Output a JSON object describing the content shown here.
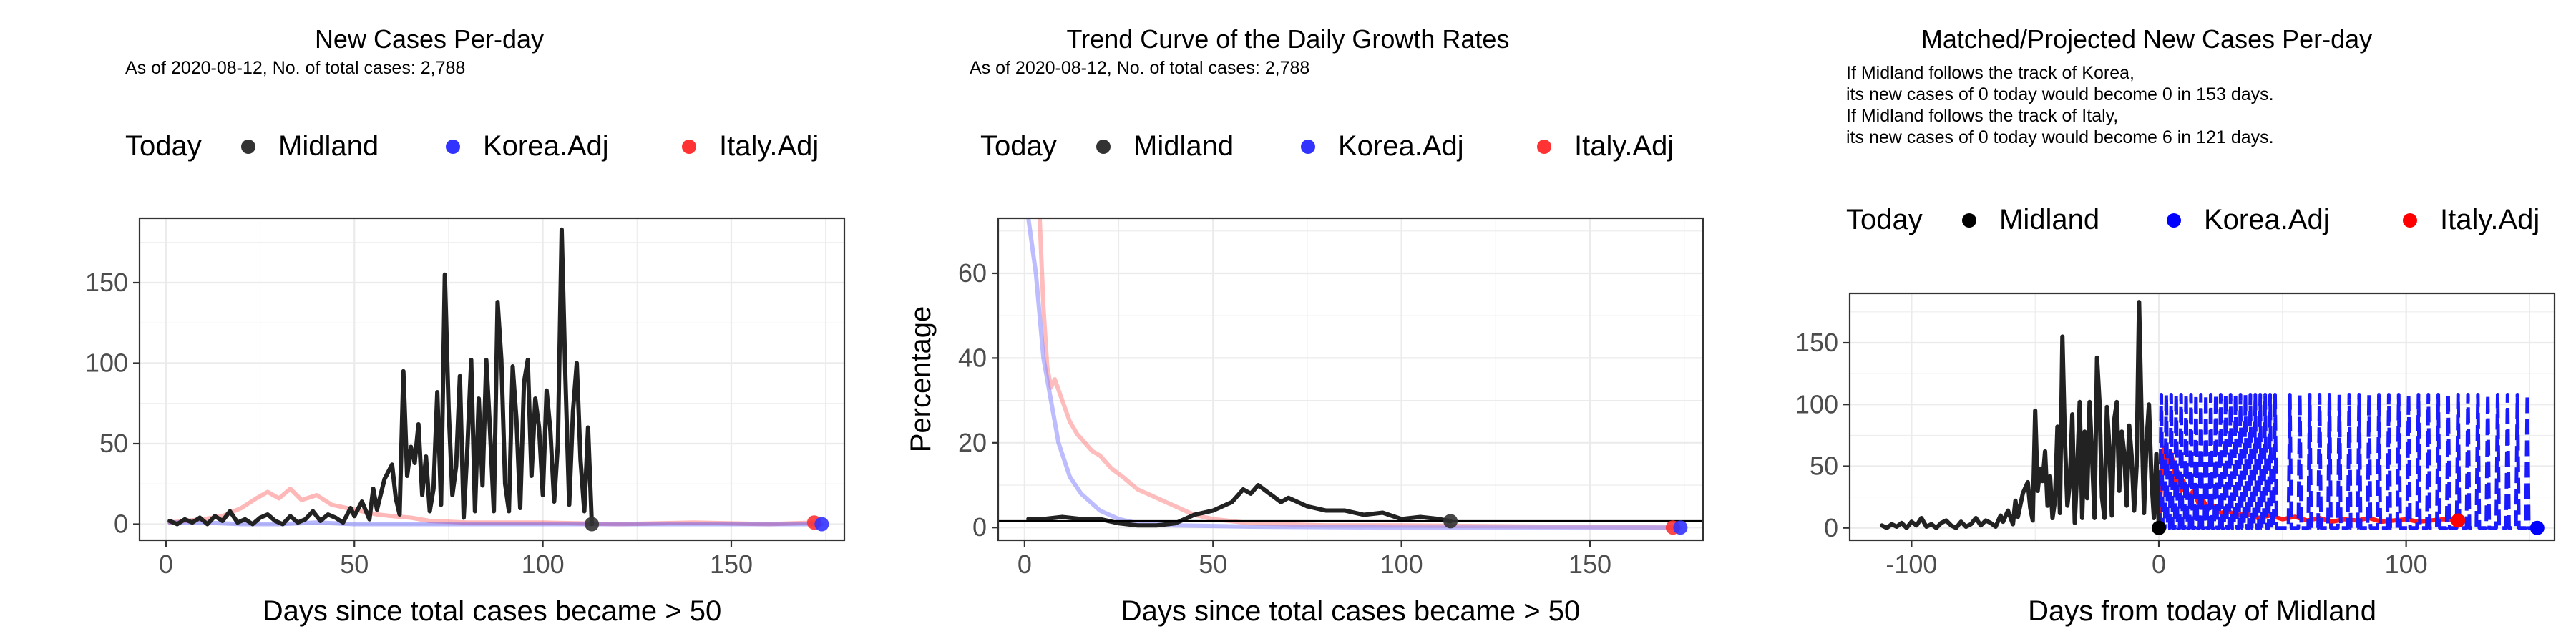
{
  "chart_data": [
    {
      "type": "line",
      "title": "New Cases Per-day",
      "subtitle": "As of 2020-08-12, No. of total cases: 2,788",
      "xlabel": "Days since total cases became > 50",
      "ylabel": "",
      "xlim": [
        -7,
        180
      ],
      "ylim": [
        -10,
        190
      ],
      "xticks": [
        0,
        50,
        100,
        150
      ],
      "yticks": [
        0,
        50,
        100,
        150
      ],
      "grid": true,
      "legend": {
        "position": "top",
        "title": "Today",
        "entries": [
          {
            "name": "Midland",
            "color": "#333333"
          },
          {
            "name": "Korea.Adj",
            "color": "#3333ff"
          },
          {
            "name": "Italy.Adj",
            "color": "#ff3333"
          }
        ]
      },
      "series": [
        {
          "name": "Midland",
          "color": "#222222",
          "endpoint": [
            113,
            0
          ],
          "x": [
            1,
            3,
            5,
            7,
            9,
            11,
            13,
            15,
            17,
            19,
            21,
            23,
            25,
            27,
            29,
            31,
            33,
            35,
            37,
            39,
            41,
            43,
            45,
            47,
            49,
            50,
            52,
            54,
            55,
            56,
            58,
            60,
            61,
            62,
            63,
            64,
            65,
            66,
            67,
            68,
            69,
            70,
            71,
            72,
            73,
            74,
            75,
            76,
            77,
            78,
            79,
            80,
            81,
            82,
            83,
            84,
            85,
            86,
            87,
            88,
            89,
            90,
            91,
            92,
            93,
            94,
            95,
            96,
            97,
            98,
            99,
            100,
            101,
            102,
            103,
            104,
            105,
            106,
            107,
            108,
            109,
            110,
            111,
            112,
            113
          ],
          "y": [
            2,
            0,
            3,
            1,
            4,
            0,
            5,
            2,
            8,
            1,
            3,
            0,
            4,
            6,
            2,
            0,
            5,
            1,
            3,
            8,
            2,
            6,
            4,
            1,
            10,
            5,
            14,
            3,
            22,
            9,
            28,
            37,
            16,
            6,
            95,
            30,
            48,
            38,
            62,
            18,
            42,
            8,
            22,
            82,
            12,
            155,
            72,
            18,
            36,
            92,
            4,
            48,
            102,
            8,
            78,
            24,
            102,
            58,
            8,
            138,
            102,
            25,
            8,
            98,
            65,
            10,
            88,
            102,
            30,
            78,
            60,
            18,
            83,
            58,
            14,
            50,
            183,
            90,
            12,
            70,
            100,
            40,
            8,
            60,
            0
          ]
        },
        {
          "name": "Korea.Adj",
          "color": "#3333ff",
          "endpoint": [
            174,
            0
          ],
          "x": [
            1,
            10,
            20,
            30,
            40,
            50,
            60,
            80,
            100,
            120,
            140,
            160,
            174
          ],
          "y": [
            1,
            1,
            0,
            0,
            1,
            0,
            0,
            0,
            0,
            0,
            0,
            0,
            0
          ]
        },
        {
          "name": "Italy.Adj",
          "color": "#ff3333",
          "endpoint": [
            172,
            1
          ],
          "x": [
            1,
            5,
            10,
            15,
            20,
            24,
            27,
            30,
            33,
            36,
            40,
            44,
            48,
            52,
            56,
            60,
            65,
            70,
            80,
            90,
            100,
            120,
            140,
            160,
            172
          ],
          "y": [
            1,
            2,
            3,
            5,
            10,
            16,
            20,
            16,
            22,
            15,
            18,
            12,
            10,
            8,
            6,
            5,
            4,
            2,
            1,
            1,
            1,
            0,
            1,
            0,
            1
          ]
        }
      ]
    },
    {
      "type": "line",
      "title": "Trend Curve of the Daily Growth Rates",
      "subtitle": "As of 2020-08-12, No. of total cases: 2,788",
      "xlabel": "Days since total cases became > 50",
      "ylabel": "Percentage",
      "xlim": [
        -7,
        180
      ],
      "ylim": [
        -3,
        73
      ],
      "xticks": [
        0,
        50,
        100,
        150
      ],
      "yticks": [
        0,
        20,
        40,
        60
      ],
      "grid": true,
      "reference_line_y": 1.5,
      "legend": {
        "position": "top",
        "title": "Today",
        "entries": [
          {
            "name": "Midland",
            "color": "#333333"
          },
          {
            "name": "Korea.Adj",
            "color": "#3333ff"
          },
          {
            "name": "Italy.Adj",
            "color": "#ff3333"
          }
        ]
      },
      "series": [
        {
          "name": "Midland",
          "color": "#222222",
          "endpoint": [
            113,
            1.5
          ],
          "x": [
            1,
            5,
            10,
            15,
            20,
            25,
            30,
            35,
            40,
            45,
            50,
            55,
            58,
            60,
            62,
            65,
            68,
            70,
            75,
            80,
            85,
            90,
            95,
            100,
            105,
            110,
            113
          ],
          "y": [
            2,
            2,
            2.5,
            2,
            2,
            1,
            0.5,
            0.5,
            1,
            3,
            4,
            6,
            9,
            8,
            10,
            8,
            6,
            7,
            5,
            4,
            4,
            3,
            3.5,
            2,
            2.5,
            2,
            1.5
          ]
        },
        {
          "name": "Korea.Adj",
          "color": "#8f8fff",
          "endpoint": [
            174,
            0
          ],
          "x": [
            1,
            3,
            5,
            7,
            9,
            12,
            15,
            20,
            25,
            30,
            40,
            60,
            100,
            140,
            174
          ],
          "y": [
            73,
            60,
            40,
            30,
            20,
            12,
            8,
            4,
            2,
            1,
            0.5,
            0.2,
            0,
            0,
            0
          ]
        },
        {
          "name": "Italy.Adj",
          "color": "#ff9090",
          "endpoint": [
            172,
            0
          ],
          "x": [
            4,
            5,
            6,
            7,
            8,
            10,
            12,
            14,
            16,
            18,
            20,
            23,
            26,
            30,
            35,
            40,
            45,
            50,
            60,
            80,
            100,
            140,
            172
          ],
          "y": [
            73,
            52,
            38,
            33,
            35,
            30,
            25,
            22,
            20,
            18,
            17,
            14,
            12,
            9,
            7,
            5,
            3,
            2,
            1,
            0.5,
            0.5,
            0.2,
            0
          ]
        }
      ]
    },
    {
      "type": "line",
      "title": "Matched/Projected New Cases Per-day",
      "subtitle": "",
      "annotations": [
        "If Midland follows the track of Korea,",
        "its new cases of 0 today would become 0 in 153 days.",
        "If Midland follows the track of Italy,",
        "its new cases of 0 today would become 6 in 121 days."
      ],
      "xlabel": "Days from today of Midland",
      "ylabel": "",
      "xlim": [
        -125,
        160
      ],
      "ylim": [
        -10,
        190
      ],
      "xticks": [
        -100,
        0,
        100
      ],
      "yticks": [
        0,
        50,
        100,
        150
      ],
      "grid": true,
      "legend": {
        "position": "top",
        "title": "Today",
        "entries": [
          {
            "name": "Midland",
            "color": "#000000"
          },
          {
            "name": "Korea.Adj",
            "color": "#0000ff"
          },
          {
            "name": "Italy.Adj",
            "color": "#ff0000"
          }
        ]
      },
      "series": [
        {
          "name": "Midland",
          "color": "#222222",
          "endpoint": [
            0,
            0
          ],
          "x": [
            -112,
            -110,
            -108,
            -106,
            -104,
            -102,
            -100,
            -98,
            -96,
            -94,
            -92,
            -90,
            -88,
            -86,
            -84,
            -82,
            -80,
            -78,
            -76,
            -74,
            -72,
            -70,
            -68,
            -66,
            -64,
            -63,
            -61,
            -59,
            -58,
            -57,
            -55,
            -53,
            -52,
            -51,
            -50,
            -49,
            -48,
            -47,
            -46,
            -45,
            -44,
            -43,
            -42,
            -41,
            -40,
            -39,
            -38,
            -37,
            -36,
            -35,
            -34,
            -33,
            -32,
            -31,
            -30,
            -29,
            -28,
            -27,
            -26,
            -25,
            -24,
            -23,
            -22,
            -21,
            -20,
            -19,
            -18,
            -17,
            -16,
            -15,
            -14,
            -13,
            -12,
            -11,
            -10,
            -9,
            -8,
            -7,
            -6,
            -5,
            -4,
            -3,
            -2,
            -1,
            0
          ],
          "y": [
            2,
            0,
            3,
            1,
            4,
            0,
            5,
            2,
            8,
            1,
            3,
            0,
            4,
            6,
            2,
            0,
            5,
            1,
            3,
            8,
            2,
            6,
            4,
            1,
            10,
            5,
            14,
            3,
            22,
            9,
            28,
            37,
            16,
            6,
            95,
            30,
            48,
            38,
            62,
            18,
            42,
            8,
            22,
            82,
            12,
            155,
            72,
            18,
            36,
            92,
            4,
            48,
            102,
            8,
            78,
            24,
            102,
            58,
            8,
            138,
            102,
            25,
            8,
            98,
            65,
            10,
            88,
            102,
            30,
            78,
            60,
            18,
            83,
            58,
            14,
            50,
            183,
            90,
            12,
            70,
            100,
            40,
            8,
            60,
            0
          ]
        },
        {
          "name": "Korea.Adj",
          "color": "#1a1aff",
          "endpoint": [
            153,
            0
          ],
          "spikes_x": [
            1,
            3,
            5,
            7,
            9,
            11,
            13,
            15,
            17,
            19,
            21,
            23,
            25,
            27,
            29,
            31,
            33,
            35,
            37,
            39,
            41,
            43,
            45,
            47,
            53,
            57,
            61,
            65,
            69,
            73,
            77,
            81,
            85,
            89,
            93,
            97,
            101,
            105,
            109,
            113,
            117,
            121,
            125,
            129,
            133,
            137,
            141,
            145,
            149
          ],
          "spike_value": 108,
          "baseline": 0
        },
        {
          "name": "Italy.Adj",
          "color": "#ff1a1a",
          "endpoint": [
            121,
            6
          ],
          "x": [
            0,
            1,
            2,
            3,
            4,
            5,
            6,
            7,
            8,
            9,
            10,
            12,
            14,
            16,
            18,
            20,
            22,
            25,
            28,
            31,
            35,
            40,
            45,
            50,
            55,
            60,
            65,
            70,
            75,
            80,
            85,
            90,
            95,
            100,
            105,
            110,
            115,
            121
          ],
          "y": [
            0,
            40,
            65,
            55,
            48,
            60,
            50,
            35,
            45,
            30,
            38,
            25,
            30,
            20,
            22,
            15,
            18,
            12,
            14,
            10,
            12,
            8,
            10,
            7,
            9,
            6,
            8,
            5,
            7,
            6,
            8,
            5,
            6,
            7,
            5,
            6,
            7,
            6
          ]
        }
      ]
    }
  ]
}
